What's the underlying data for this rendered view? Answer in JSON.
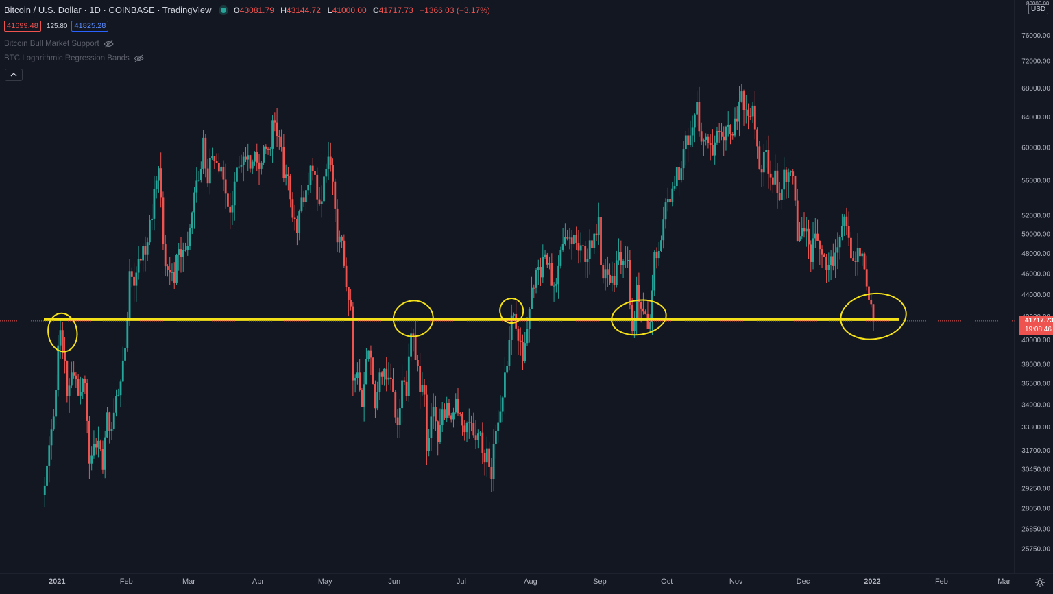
{
  "header": {
    "symbol": "Bitcoin / U.S. Dollar · 1D · COINBASE · TradingView",
    "open_label": "O",
    "open": "43081.79",
    "high_label": "H",
    "high": "43144.72",
    "low_label": "L",
    "low": "41000.00",
    "close_label": "C",
    "close": "41717.73",
    "change": "−1366.03 (−3.17%)"
  },
  "quote": {
    "bid": "41699.48",
    "spread": "125.80",
    "ask": "41825.28"
  },
  "indicators": [
    {
      "label": "Bitcoin Bull Market Support",
      "icon": "eye-off-icon"
    },
    {
      "label": "BTC Logarithmic Regression Bands",
      "icon": "eye-off-icon"
    }
  ],
  "price_scale": {
    "currency": "USD",
    "last_price": "41717.73",
    "countdown": "19:08:46",
    "top_label": "80000.00"
  },
  "colors": {
    "up": "#26a69a",
    "down": "#ef5350",
    "support": "#f5e11a",
    "background": "#131722"
  },
  "chart_data": {
    "type": "candlestick",
    "title": "Bitcoin / U.S. Dollar · 1D · COINBASE",
    "y_scale": "log",
    "ylim": [
      24500,
      81000
    ],
    "xlim": [
      "2020-12-31",
      "2022-03-10"
    ],
    "y_ticks": [
      25750,
      26850,
      28050,
      29250,
      30450,
      31700,
      33300,
      34900,
      36500,
      38000,
      40000,
      42000,
      44000,
      46000,
      48000,
      50000,
      52000,
      56000,
      60000,
      64000,
      68000,
      72000,
      76000
    ],
    "y_tick_labels": [
      "25750.00",
      "26850.00",
      "28050.00",
      "29250.00",
      "30450.00",
      "31700.00",
      "33300.00",
      "34900.00",
      "36500.00",
      "38000.00",
      "40000.00",
      "42000.00",
      "44000.00",
      "46000.00",
      "48000.00",
      "50000.00",
      "52000.00",
      "56000.00",
      "60000.00",
      "64000.00",
      "68000.00",
      "72000.00",
      "76000.00"
    ],
    "x_ticks": [
      {
        "date": "2021-01-01",
        "label": "2021"
      },
      {
        "date": "2021-02-01",
        "label": "Feb"
      },
      {
        "date": "2021-03-01",
        "label": "Mar"
      },
      {
        "date": "2021-04-01",
        "label": "Apr"
      },
      {
        "date": "2021-05-01",
        "label": "May"
      },
      {
        "date": "2021-06-01",
        "label": "Jun"
      },
      {
        "date": "2021-07-01",
        "label": "Jul"
      },
      {
        "date": "2021-08-01",
        "label": "Aug"
      },
      {
        "date": "2021-09-01",
        "label": "Sep"
      },
      {
        "date": "2021-10-01",
        "label": "Oct"
      },
      {
        "date": "2021-11-01",
        "label": "Nov"
      },
      {
        "date": "2021-12-01",
        "label": "Dec"
      },
      {
        "date": "2022-01-01",
        "label": "2022"
      },
      {
        "date": "2022-02-01",
        "label": "Feb"
      },
      {
        "date": "2022-03-01",
        "label": "Mar"
      }
    ],
    "close_series": [
      [
        "2021-01-01",
        29400
      ],
      [
        "2021-01-03",
        32000
      ],
      [
        "2021-01-05",
        34000
      ],
      [
        "2021-01-07",
        39500
      ],
      [
        "2021-01-08",
        40800
      ],
      [
        "2021-01-10",
        38200
      ],
      [
        "2021-01-11",
        35500
      ],
      [
        "2021-01-13",
        37300
      ],
      [
        "2021-01-15",
        36800
      ],
      [
        "2021-01-17",
        35800
      ],
      [
        "2021-01-19",
        36500
      ],
      [
        "2021-01-21",
        30800
      ],
      [
        "2021-01-23",
        32100
      ],
      [
        "2021-01-25",
        32300
      ],
      [
        "2021-01-27",
        30400
      ],
      [
        "2021-01-29",
        34300
      ],
      [
        "2021-01-31",
        33100
      ],
      [
        "2021-02-02",
        35500
      ],
      [
        "2021-02-04",
        36600
      ],
      [
        "2021-02-06",
        39300
      ],
      [
        "2021-02-08",
        46200
      ],
      [
        "2021-02-10",
        44800
      ],
      [
        "2021-02-12",
        47400
      ],
      [
        "2021-02-14",
        48700
      ],
      [
        "2021-02-16",
        49100
      ],
      [
        "2021-02-18",
        51600
      ],
      [
        "2021-02-20",
        55900
      ],
      [
        "2021-02-21",
        57400
      ],
      [
        "2021-02-22",
        54000
      ],
      [
        "2021-02-23",
        48900
      ],
      [
        "2021-02-25",
        46300
      ],
      [
        "2021-02-27",
        46100
      ],
      [
        "2021-02-28",
        45100
      ],
      [
        "2021-03-02",
        48400
      ],
      [
        "2021-03-04",
        48300
      ],
      [
        "2021-03-06",
        48700
      ],
      [
        "2021-03-08",
        52300
      ],
      [
        "2021-03-10",
        55900
      ],
      [
        "2021-03-12",
        57300
      ],
      [
        "2021-03-13",
        61200
      ],
      [
        "2021-03-15",
        55600
      ],
      [
        "2021-03-17",
        58900
      ],
      [
        "2021-03-19",
        58000
      ],
      [
        "2021-03-21",
        57500
      ],
      [
        "2021-03-23",
        54400
      ],
      [
        "2021-03-25",
        52300
      ],
      [
        "2021-03-27",
        55800
      ],
      [
        "2021-03-29",
        57600
      ],
      [
        "2021-03-31",
        58800
      ],
      [
        "2021-04-02",
        59000
      ],
      [
        "2021-04-04",
        58200
      ],
      [
        "2021-04-06",
        58100
      ],
      [
        "2021-04-08",
        58100
      ],
      [
        "2021-04-10",
        59800
      ],
      [
        "2021-04-12",
        59800
      ],
      [
        "2021-04-13",
        63500
      ],
      [
        "2021-04-14",
        63200
      ],
      [
        "2021-04-16",
        61300
      ],
      [
        "2021-04-17",
        60000
      ],
      [
        "2021-04-18",
        56200
      ],
      [
        "2021-04-20",
        56500
      ],
      [
        "2021-04-22",
        51700
      ],
      [
        "2021-04-24",
        50100
      ],
      [
        "2021-04-26",
        54000
      ],
      [
        "2021-04-28",
        54800
      ],
      [
        "2021-04-30",
        57700
      ],
      [
        "2021-05-02",
        56600
      ],
      [
        "2021-05-04",
        53200
      ],
      [
        "2021-05-06",
        56400
      ],
      [
        "2021-05-08",
        58800
      ],
      [
        "2021-05-10",
        55800
      ],
      [
        "2021-05-12",
        49100
      ],
      [
        "2021-05-13",
        49700
      ],
      [
        "2021-05-15",
        46700
      ],
      [
        "2021-05-17",
        43500
      ],
      [
        "2021-05-18",
        42900
      ],
      [
        "2021-05-19",
        36700
      ],
      [
        "2021-05-21",
        37300
      ],
      [
        "2021-05-23",
        34700
      ],
      [
        "2021-05-25",
        38400
      ],
      [
        "2021-05-27",
        38500
      ],
      [
        "2021-05-29",
        34600
      ],
      [
        "2021-05-31",
        37300
      ],
      [
        "2021-06-02",
        37600
      ],
      [
        "2021-06-04",
        36900
      ],
      [
        "2021-06-06",
        35800
      ],
      [
        "2021-06-08",
        33400
      ],
      [
        "2021-06-10",
        36700
      ],
      [
        "2021-06-12",
        35500
      ],
      [
        "2021-06-14",
        40500
      ],
      [
        "2021-06-16",
        38300
      ],
      [
        "2021-06-18",
        35800
      ],
      [
        "2021-06-20",
        35600
      ],
      [
        "2021-06-21",
        31600
      ],
      [
        "2021-06-22",
        32500
      ],
      [
        "2021-06-24",
        34700
      ],
      [
        "2021-06-26",
        32200
      ],
      [
        "2021-06-28",
        34500
      ],
      [
        "2021-06-30",
        35000
      ],
      [
        "2021-07-02",
        33800
      ],
      [
        "2021-07-04",
        35300
      ],
      [
        "2021-07-06",
        34200
      ],
      [
        "2021-07-08",
        32900
      ],
      [
        "2021-07-10",
        33600
      ],
      [
        "2021-07-12",
        32700
      ],
      [
        "2021-07-14",
        32800
      ],
      [
        "2021-07-16",
        31500
      ],
      [
        "2021-07-18",
        31800
      ],
      [
        "2021-07-20",
        29800
      ],
      [
        "2021-07-21",
        32100
      ],
      [
        "2021-07-23",
        33600
      ],
      [
        "2021-07-25",
        35400
      ],
      [
        "2021-07-26",
        37300
      ],
      [
        "2021-07-28",
        40000
      ],
      [
        "2021-07-30",
        42200
      ],
      [
        "2021-08-01",
        39900
      ],
      [
        "2021-08-03",
        38200
      ],
      [
        "2021-08-05",
        40900
      ],
      [
        "2021-08-07",
        44600
      ],
      [
        "2021-08-09",
        46300
      ],
      [
        "2021-08-11",
        45600
      ],
      [
        "2021-08-13",
        47800
      ],
      [
        "2021-08-15",
        47000
      ],
      [
        "2021-08-17",
        44800
      ],
      [
        "2021-08-19",
        46700
      ],
      [
        "2021-08-21",
        48900
      ],
      [
        "2021-08-23",
        49500
      ],
      [
        "2021-08-25",
        48900
      ],
      [
        "2021-08-27",
        49000
      ],
      [
        "2021-08-29",
        48800
      ],
      [
        "2021-08-31",
        47100
      ],
      [
        "2021-09-02",
        49300
      ],
      [
        "2021-09-04",
        50000
      ],
      [
        "2021-09-06",
        51800
      ],
      [
        "2021-09-07",
        46800
      ],
      [
        "2021-09-09",
        46400
      ],
      [
        "2021-09-11",
        45100
      ],
      [
        "2021-09-13",
        44900
      ],
      [
        "2021-09-15",
        48100
      ],
      [
        "2021-09-17",
        47200
      ],
      [
        "2021-09-19",
        47300
      ],
      [
        "2021-09-20",
        43000
      ],
      [
        "2021-09-21",
        40700
      ],
      [
        "2021-09-23",
        44900
      ],
      [
        "2021-09-25",
        42700
      ],
      [
        "2021-09-27",
        42200
      ],
      [
        "2021-09-29",
        41500
      ],
      [
        "2021-10-01",
        48100
      ],
      [
        "2021-10-03",
        48200
      ],
      [
        "2021-10-05",
        51500
      ],
      [
        "2021-10-07",
        53800
      ],
      [
        "2021-10-09",
        55000
      ],
      [
        "2021-10-11",
        57500
      ],
      [
        "2021-10-13",
        57400
      ],
      [
        "2021-10-15",
        61500
      ],
      [
        "2021-10-17",
        61500
      ],
      [
        "2021-10-19",
        64300
      ],
      [
        "2021-10-20",
        66000
      ],
      [
        "2021-10-22",
        60700
      ],
      [
        "2021-10-24",
        61300
      ],
      [
        "2021-10-26",
        60300
      ],
      [
        "2021-10-28",
        60600
      ],
      [
        "2021-10-30",
        62000
      ],
      [
        "2021-11-01",
        60900
      ],
      [
        "2021-11-03",
        62900
      ],
      [
        "2021-11-05",
        61500
      ],
      [
        "2021-11-07",
        63300
      ],
      [
        "2021-11-09",
        67500
      ],
      [
        "2021-11-10",
        64900
      ],
      [
        "2021-11-12",
        64100
      ],
      [
        "2021-11-14",
        65500
      ],
      [
        "2021-11-16",
        60100
      ],
      [
        "2021-11-18",
        56900
      ],
      [
        "2021-11-20",
        59700
      ],
      [
        "2021-11-22",
        56300
      ],
      [
        "2021-11-24",
        57100
      ],
      [
        "2021-11-26",
        53700
      ],
      [
        "2021-11-28",
        57200
      ],
      [
        "2021-11-30",
        56900
      ],
      [
        "2021-12-02",
        56500
      ],
      [
        "2021-12-03",
        53600
      ],
      [
        "2021-12-04",
        49200
      ],
      [
        "2021-12-06",
        50600
      ],
      [
        "2021-12-08",
        50500
      ],
      [
        "2021-12-10",
        47100
      ],
      [
        "2021-12-12",
        50000
      ],
      [
        "2021-12-14",
        48400
      ],
      [
        "2021-12-16",
        47600
      ],
      [
        "2021-12-18",
        46800
      ],
      [
        "2021-12-20",
        46700
      ],
      [
        "2021-12-22",
        48600
      ],
      [
        "2021-12-24",
        50800
      ],
      [
        "2021-12-26",
        50800
      ],
      [
        "2021-12-28",
        47500
      ],
      [
        "2021-12-30",
        47100
      ],
      [
        "2022-01-01",
        47700
      ],
      [
        "2022-01-03",
        46400
      ],
      [
        "2022-01-05",
        43500
      ],
      [
        "2022-01-06",
        43100
      ],
      [
        "2022-01-07",
        41717.73
      ]
    ],
    "support_level": 41717.73,
    "annotations": [
      {
        "type": "ellipse",
        "date": "2021-01-09",
        "price": 40600
      },
      {
        "type": "ellipse",
        "date": "2021-06-15",
        "price": 41800
      },
      {
        "type": "ellipse",
        "date": "2021-07-29",
        "price": 42500
      },
      {
        "type": "ellipse",
        "date": "2021-09-24",
        "price": 41900
      },
      {
        "type": "ellipse",
        "date": "2022-01-07",
        "price": 42000
      }
    ]
  }
}
